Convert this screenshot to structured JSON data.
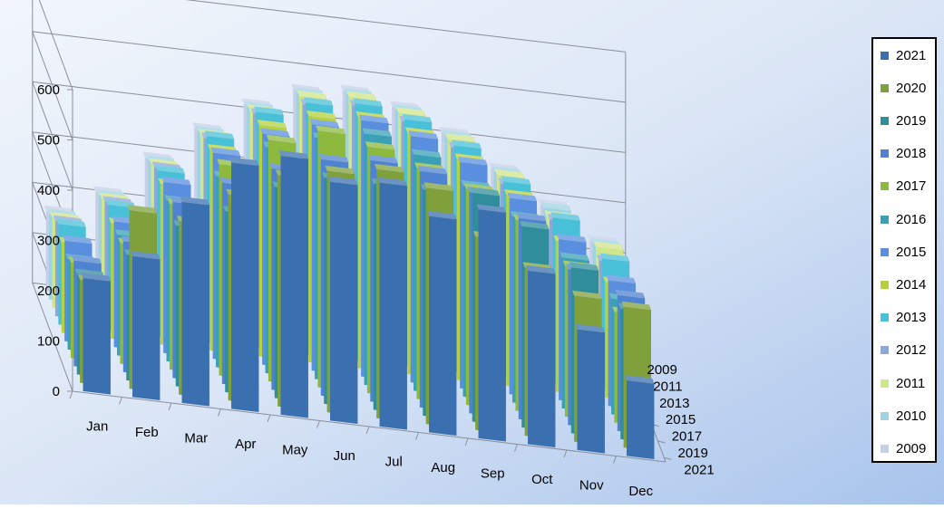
{
  "chart_data": {
    "type": "bar",
    "subtype": "3d-grouped-depth",
    "categories": [
      "Jan",
      "Feb",
      "Mar",
      "Apr",
      "May",
      "Jun",
      "Jul",
      "Aug",
      "Sep",
      "Oct",
      "Nov",
      "Dec"
    ],
    "depth_tick_labels": [
      "2009",
      "2011",
      "2013",
      "2015",
      "2017",
      "2019",
      "2021"
    ],
    "ylim": [
      0,
      600
    ],
    "yticks": [
      "0",
      "100",
      "200",
      "300",
      "400",
      "500",
      "600"
    ],
    "grid": true,
    "legend_position": "right",
    "series": [
      {
        "name": "2021",
        "color": "#3a6fb0",
        "values": [
          225,
          280,
          400,
          490,
          515,
          475,
          485,
          430,
          455,
          345,
          240,
          150
        ]
      },
      {
        "name": "2020",
        "color": "#7fa03a",
        "values": [
          205,
          355,
          345,
          410,
          460,
          480,
          495,
          470,
          385,
          335,
          290,
          280
        ]
      },
      {
        "name": "2019",
        "color": "#2f8e9a",
        "values": [
          200,
          250,
          320,
          360,
          420,
          450,
          450,
          450,
          455,
          400,
          330,
          260
        ]
      },
      {
        "name": "2018",
        "color": "#4f82d0",
        "values": [
          210,
          260,
          350,
          400,
          440,
          470,
          480,
          470,
          440,
          400,
          310,
          270
        ]
      },
      {
        "name": "2017",
        "color": "#8dba3c",
        "values": [
          190,
          240,
          330,
          420,
          480,
          510,
          490,
          460,
          430,
          380,
          300,
          220
        ]
      },
      {
        "name": "2016",
        "color": "#3aa0b5",
        "values": [
          180,
          240,
          320,
          380,
          450,
          480,
          500,
          470,
          420,
          370,
          300,
          230
        ]
      },
      {
        "name": "2015",
        "color": "#5a8fe0",
        "values": [
          200,
          250,
          340,
          410,
          460,
          490,
          510,
          490,
          450,
          390,
          320,
          250
        ]
      },
      {
        "name": "2014",
        "color": "#b5d23e",
        "values": [
          180,
          230,
          320,
          400,
          460,
          490,
          500,
          480,
          440,
          380,
          300,
          230
        ]
      },
      {
        "name": "2013",
        "color": "#48c0d8",
        "values": [
          200,
          250,
          330,
          410,
          470,
          500,
          510,
          490,
          450,
          390,
          330,
          260
        ]
      },
      {
        "name": "2012",
        "color": "#8fa6d8",
        "values": [
          190,
          240,
          320,
          390,
          450,
          480,
          490,
          470,
          430,
          370,
          310,
          240
        ]
      },
      {
        "name": "2011",
        "color": "#d0e68a",
        "values": [
          180,
          230,
          310,
          380,
          440,
          480,
          490,
          470,
          430,
          370,
          300,
          250
        ]
      },
      {
        "name": "2010",
        "color": "#9ed4e2",
        "values": [
          170,
          220,
          300,
          370,
          430,
          470,
          480,
          460,
          420,
          360,
          300,
          240
        ]
      },
      {
        "name": "2009",
        "color": "#c7cfe8",
        "values": [
          160,
          210,
          290,
          360,
          420,
          460,
          470,
          450,
          410,
          350,
          290,
          230
        ]
      }
    ]
  }
}
